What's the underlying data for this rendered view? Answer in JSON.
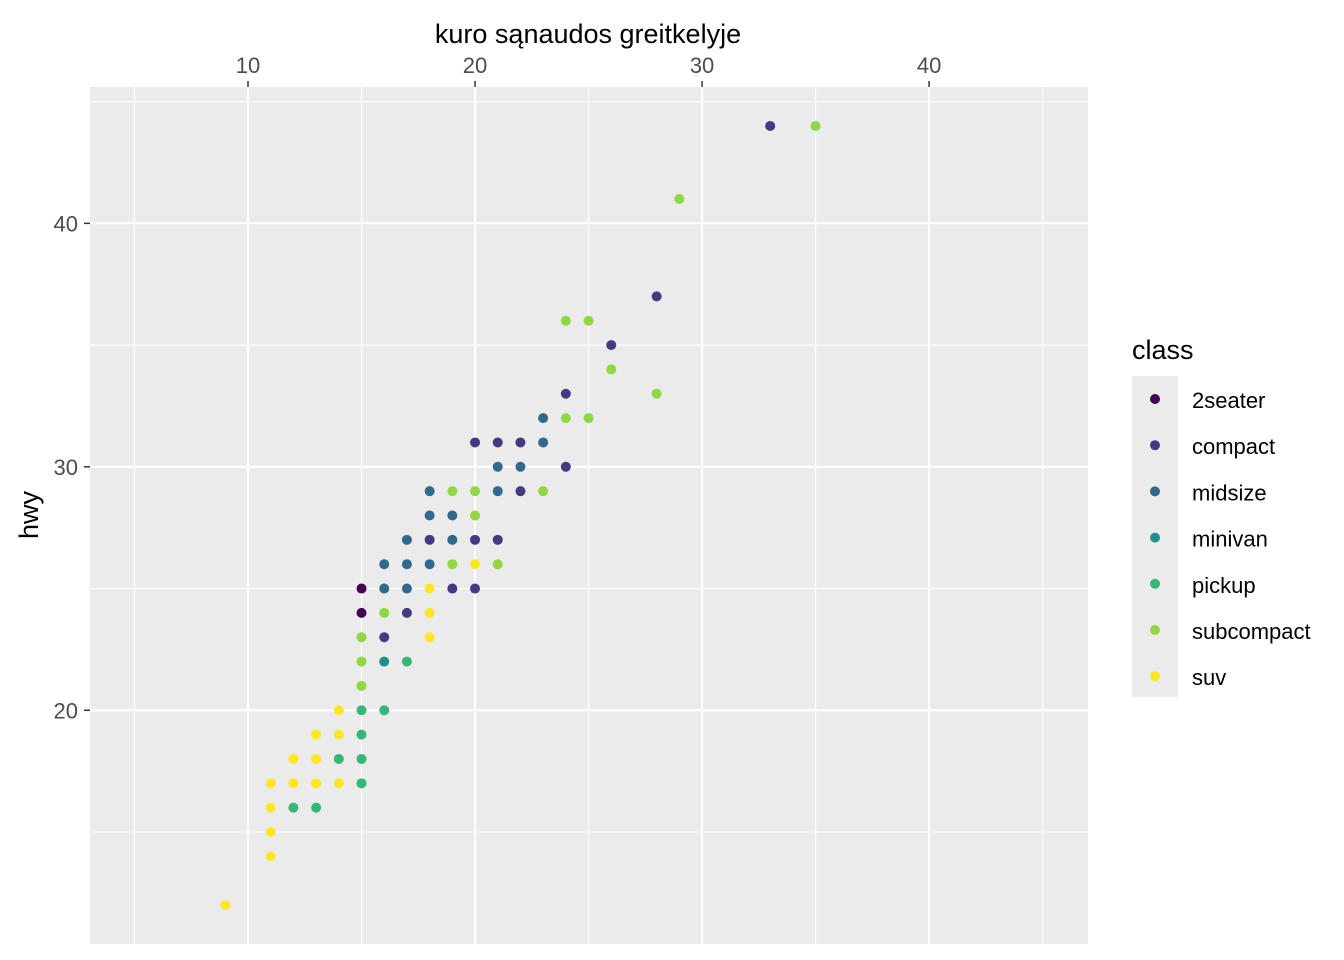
{
  "chart_data": {
    "type": "scatter",
    "title": "",
    "xlabel": "kuro sąnaudos greitkelyje",
    "x_axis_position": "top",
    "ylabel": "hwy",
    "xlim": [
      3.04,
      47
    ],
    "ylim": [
      10.4,
      45.6
    ],
    "x_ticks": [
      "10",
      "20",
      "30",
      "40"
    ],
    "y_ticks": [
      "20",
      "30",
      "40"
    ],
    "grid": true,
    "legend": {
      "title": "class",
      "placement": "right",
      "entries": [
        "2seater",
        "compact",
        "midsize",
        "minivan",
        "pickup",
        "subcompact",
        "suv"
      ]
    },
    "colors": {
      "2seater": "#440154",
      "compact": "#443983",
      "midsize": "#31688e",
      "minivan": "#21908d",
      "pickup": "#35b779",
      "subcompact": "#8fd744",
      "suv": "#fde725",
      "panel": "#ebebeb",
      "grid": "#ffffff"
    },
    "points": [
      [
        9,
        12,
        "suv"
      ],
      [
        11,
        14,
        "suv"
      ],
      [
        11,
        15,
        "suv"
      ],
      [
        11,
        16,
        "suv"
      ],
      [
        11,
        17,
        "suv"
      ],
      [
        12,
        16,
        "pickup"
      ],
      [
        13,
        16,
        "pickup"
      ],
      [
        12,
        17,
        "suv"
      ],
      [
        12,
        18,
        "suv"
      ],
      [
        13,
        17,
        "suv"
      ],
      [
        13,
        18,
        "suv"
      ],
      [
        13,
        19,
        "suv"
      ],
      [
        14,
        17,
        "suv"
      ],
      [
        14,
        18,
        "pickup"
      ],
      [
        14,
        19,
        "suv"
      ],
      [
        14,
        20,
        "suv"
      ],
      [
        15,
        17,
        "pickup"
      ],
      [
        15,
        18,
        "pickup"
      ],
      [
        15,
        19,
        "pickup"
      ],
      [
        15,
        20,
        "pickup"
      ],
      [
        15,
        21,
        "subcompact"
      ],
      [
        15,
        22,
        "subcompact"
      ],
      [
        15,
        23,
        "subcompact"
      ],
      [
        15,
        24,
        "2seater"
      ],
      [
        15,
        25,
        "2seater"
      ],
      [
        16,
        20,
        "pickup"
      ],
      [
        16,
        22,
        "minivan"
      ],
      [
        17,
        22,
        "pickup"
      ],
      [
        16,
        23,
        "compact"
      ],
      [
        16,
        24,
        "subcompact"
      ],
      [
        16,
        25,
        "midsize"
      ],
      [
        16,
        26,
        "midsize"
      ],
      [
        17,
        24,
        "compact"
      ],
      [
        17,
        25,
        "midsize"
      ],
      [
        17,
        26,
        "midsize"
      ],
      [
        17,
        27,
        "midsize"
      ],
      [
        18,
        23,
        "suv"
      ],
      [
        18,
        24,
        "suv"
      ],
      [
        18,
        25,
        "suv"
      ],
      [
        18,
        26,
        "midsize"
      ],
      [
        18,
        27,
        "compact"
      ],
      [
        18,
        28,
        "midsize"
      ],
      [
        18,
        29,
        "midsize"
      ],
      [
        19,
        25,
        "compact"
      ],
      [
        19,
        26,
        "subcompact"
      ],
      [
        19,
        27,
        "midsize"
      ],
      [
        19,
        28,
        "midsize"
      ],
      [
        19,
        29,
        "subcompact"
      ],
      [
        20,
        25,
        "compact"
      ],
      [
        20,
        26,
        "suv"
      ],
      [
        20,
        27,
        "compact"
      ],
      [
        20,
        28,
        "subcompact"
      ],
      [
        20,
        29,
        "subcompact"
      ],
      [
        20,
        31,
        "compact"
      ],
      [
        21,
        26,
        "subcompact"
      ],
      [
        21,
        27,
        "compact"
      ],
      [
        21,
        29,
        "midsize"
      ],
      [
        21,
        30,
        "midsize"
      ],
      [
        21,
        31,
        "compact"
      ],
      [
        22,
        29,
        "compact"
      ],
      [
        22,
        30,
        "midsize"
      ],
      [
        22,
        31,
        "compact"
      ],
      [
        23,
        29,
        "subcompact"
      ],
      [
        23,
        31,
        "midsize"
      ],
      [
        23,
        32,
        "midsize"
      ],
      [
        24,
        30,
        "compact"
      ],
      [
        24,
        32,
        "subcompact"
      ],
      [
        24,
        33,
        "compact"
      ],
      [
        24,
        36,
        "subcompact"
      ],
      [
        25,
        32,
        "subcompact"
      ],
      [
        25,
        36,
        "subcompact"
      ],
      [
        26,
        34,
        "subcompact"
      ],
      [
        26,
        35,
        "compact"
      ],
      [
        28,
        33,
        "subcompact"
      ],
      [
        28,
        37,
        "compact"
      ],
      [
        29,
        41,
        "subcompact"
      ],
      [
        33,
        44,
        "compact"
      ],
      [
        35,
        44,
        "subcompact"
      ]
    ]
  }
}
